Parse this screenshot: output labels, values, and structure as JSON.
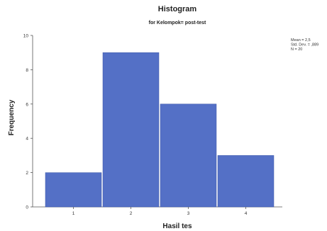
{
  "chart_data": {
    "type": "bar",
    "title": "Histogram",
    "subtitle": "for Kelompok= post-test",
    "xlabel": "Hasil tes",
    "ylabel": "Frequency",
    "categories": [
      "1",
      "2",
      "3",
      "4"
    ],
    "values": [
      2,
      9,
      6,
      3
    ],
    "ylim": [
      0,
      10
    ],
    "yticks": [
      0,
      2,
      4,
      6,
      8,
      10
    ],
    "bar_color": "#5470c6",
    "grid": false,
    "stats": [
      "Mean = 2,5",
      "Std. Dev. = ,889",
      "N = 20"
    ],
    "stats_placement": "top-right"
  }
}
